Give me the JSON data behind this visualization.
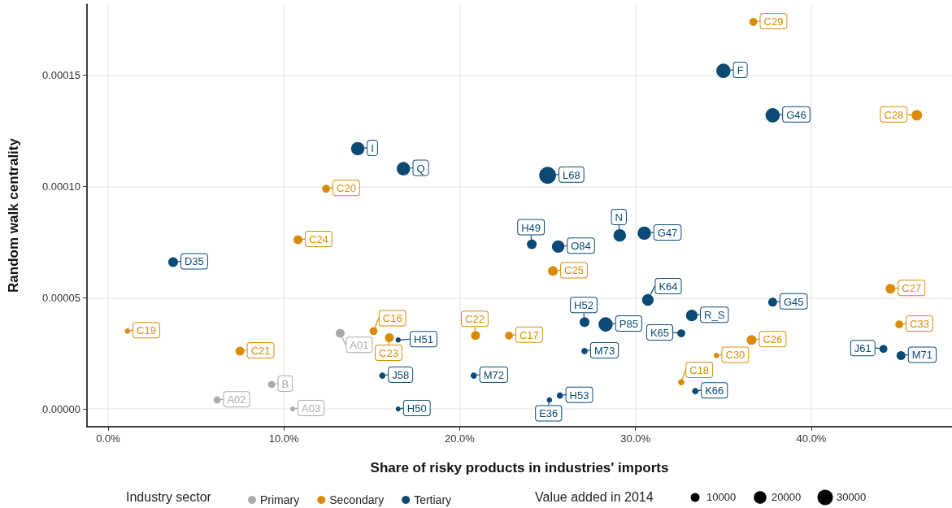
{
  "chart_data": {
    "type": "bubble",
    "xlabel": "Share of risky products in industries' imports",
    "ylabel": "Random walk centrality",
    "legend_title": "Industry sector",
    "legend": "bottom",
    "grid": true,
    "marker": "circle",
    "annotations": [
      "Value added in 2014"
    ],
    "size_legend": [
      10000,
      20000,
      30000
    ],
    "xlim": [
      -0.012,
      0.48
    ],
    "xticks": [
      {
        "value": 0,
        "label": "0.0%"
      },
      {
        "value": 0.1,
        "label": "10.0%"
      },
      {
        "value": 0.2,
        "label": "20.0%"
      },
      {
        "value": 0.3,
        "label": "30.0%"
      },
      {
        "value": 0.4,
        "label": "40.0%"
      }
    ],
    "ylim": [
      -8e-06,
      0.000182
    ],
    "yticks": [
      {
        "value": 0,
        "label": "0.00000"
      },
      {
        "value": 5e-05,
        "label": "0.00005"
      },
      {
        "value": 0.0001,
        "label": "0.00010"
      },
      {
        "value": 0.00015,
        "label": "0.00015"
      }
    ],
    "series": [
      {
        "name": "Primary",
        "color": "#aaaaaa",
        "value_labels": [
          "A01",
          "B",
          "A02",
          "A03"
        ],
        "x": [
          0.132,
          0.093,
          0.062,
          0.105
        ],
        "values": [
          3.4e-05,
          1.1e-05,
          4e-06,
          0.0
        ],
        "sizes": [
          10000,
          6400,
          6400,
          3000
        ]
      },
      {
        "name": "Secondary",
        "color": "#d98c0a",
        "value_labels": [
          "C29",
          "C28",
          "C20",
          "C24",
          "C25",
          "C27",
          "C33",
          "C26",
          "C30",
          "C18",
          "C17",
          "C22",
          "C16",
          "C23",
          "C21",
          "C19"
        ],
        "x": [
          0.367,
          0.46,
          0.124,
          0.108,
          0.253,
          0.445,
          0.45,
          0.366,
          0.346,
          0.326,
          0.228,
          0.209,
          0.151,
          0.16,
          0.075,
          0.011
        ],
        "values": [
          0.000174,
          0.000132,
          9.9e-05,
          7.6e-05,
          6.2e-05,
          5.4e-05,
          3.8e-05,
          3.1e-05,
          2.4e-05,
          1.2e-05,
          3.3e-05,
          3.3e-05,
          3.5e-05,
          3.2e-05,
          2.6e-05,
          3.5e-05
        ],
        "sizes": [
          8000,
          14000,
          8000,
          10000,
          12000,
          12000,
          8000,
          12000,
          3600,
          5000,
          8000,
          10000,
          8000,
          10000,
          10000,
          3600
        ]
      },
      {
        "name": "Tertiary",
        "color": "#0b4a75",
        "value_labels": [
          "D35",
          "I",
          "Q",
          "L68",
          "F",
          "G46",
          "H49",
          "O84",
          "N",
          "G47",
          "K64",
          "H52",
          "P85",
          "R_S",
          "G45",
          "K65",
          "J61",
          "M71",
          "M73",
          "M72",
          "H53",
          "E36",
          "K66",
          "H51",
          "J58",
          "H50"
        ],
        "x": [
          0.037,
          0.142,
          0.168,
          0.25,
          0.35,
          0.378,
          0.241,
          0.256,
          0.291,
          0.305,
          0.307,
          0.271,
          0.283,
          0.332,
          0.378,
          0.326,
          0.441,
          0.451,
          0.271,
          0.208,
          0.257,
          0.251,
          0.334,
          0.165,
          0.156,
          0.165
        ],
        "values": [
          6.6e-05,
          0.000117,
          0.000108,
          0.000105,
          0.000152,
          0.000132,
          7.4e-05,
          7.3e-05,
          7.8e-05,
          7.9e-05,
          4.9e-05,
          3.9e-05,
          3.8e-05,
          4.2e-05,
          4.8e-05,
          3.4e-05,
          2.7e-05,
          2.4e-05,
          2.6e-05,
          1.5e-05,
          6e-06,
          4e-06,
          8e-06,
          3.1e-05,
          1.5e-05,
          0.0
        ],
        "sizes": [
          12000,
          22500,
          22500,
          36000,
          25600,
          25600,
          12000,
          19600,
          19600,
          22500,
          17000,
          12000,
          25600,
          17000,
          10000,
          8000,
          8000,
          10000,
          5000,
          5000,
          5000,
          3600,
          5000,
          3600,
          5000,
          3000
        ]
      }
    ]
  }
}
